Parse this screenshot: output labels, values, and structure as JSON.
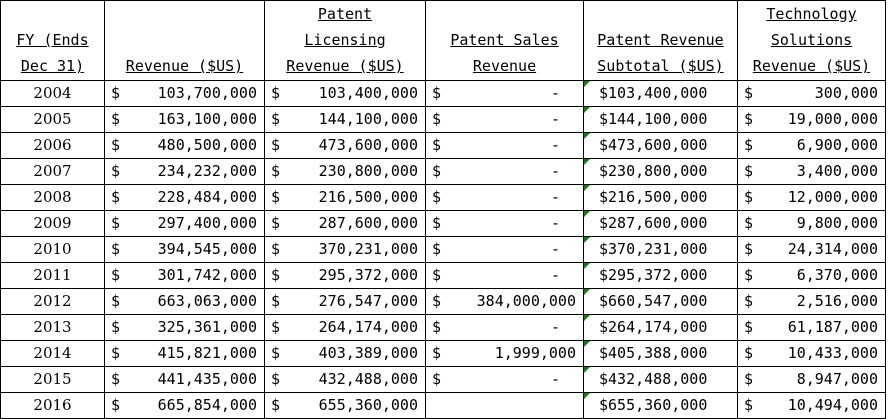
{
  "headers": [
    [
      "FY (Ends",
      "Dec 31)"
    ],
    [
      "Revenue ($US)"
    ],
    [
      "Patent",
      "Licensing",
      "Revenue ($US)"
    ],
    [
      "Patent Sales",
      "Revenue"
    ],
    [
      "Patent Revenue",
      "Subtotal ($US)"
    ],
    [
      "Technology",
      "Solutions",
      "Revenue ($US)"
    ]
  ],
  "rows": [
    {
      "year": "2004",
      "revenue": "103,700,000",
      "licensing": "103,400,000",
      "sales_sym": "$",
      "sales": "-",
      "subtotal": "$103,400,000",
      "tech": "300,000"
    },
    {
      "year": "2005",
      "revenue": "163,100,000",
      "licensing": "144,100,000",
      "sales_sym": "$",
      "sales": "-",
      "subtotal": "$144,100,000",
      "tech": "19,000,000"
    },
    {
      "year": "2006",
      "revenue": "480,500,000",
      "licensing": "473,600,000",
      "sales_sym": "$",
      "sales": "-",
      "subtotal": "$473,600,000",
      "tech": "6,900,000"
    },
    {
      "year": "2007",
      "revenue": "234,232,000",
      "licensing": "230,800,000",
      "sales_sym": "$",
      "sales": "-",
      "subtotal": "$230,800,000",
      "tech": "3,400,000"
    },
    {
      "year": "2008",
      "revenue": "228,484,000",
      "licensing": "216,500,000",
      "sales_sym": "$",
      "sales": "-",
      "subtotal": "$216,500,000",
      "tech": "12,000,000"
    },
    {
      "year": "2009",
      "revenue": "297,400,000",
      "licensing": "287,600,000",
      "sales_sym": "$",
      "sales": "-",
      "subtotal": "$287,600,000",
      "tech": "9,800,000"
    },
    {
      "year": "2010",
      "revenue": "394,545,000",
      "licensing": "370,231,000",
      "sales_sym": "$",
      "sales": "-",
      "subtotal": "$370,231,000",
      "tech": "24,314,000"
    },
    {
      "year": "2011",
      "revenue": "301,742,000",
      "licensing": "295,372,000",
      "sales_sym": "$",
      "sales": "-",
      "subtotal": "$295,372,000",
      "tech": "6,370,000"
    },
    {
      "year": "2012",
      "revenue": "663,063,000",
      "licensing": "276,547,000",
      "sales_sym": "$",
      "sales": "384,000,000",
      "subtotal": "$660,547,000",
      "tech": "2,516,000"
    },
    {
      "year": "2013",
      "revenue": "325,361,000",
      "licensing": "264,174,000",
      "sales_sym": "$",
      "sales": "-",
      "subtotal": "$264,174,000",
      "tech": "61,187,000"
    },
    {
      "year": "2014",
      "revenue": "415,821,000",
      "licensing": "403,389,000",
      "sales_sym": "$",
      "sales": "1,999,000",
      "subtotal": "$405,388,000",
      "tech": "10,433,000"
    },
    {
      "year": "2015",
      "revenue": "441,435,000",
      "licensing": "432,488,000",
      "sales_sym": "$",
      "sales": "-",
      "subtotal": "$432,488,000",
      "tech": "8,947,000"
    },
    {
      "year": "2016",
      "revenue": "665,854,000",
      "licensing": "655,360,000",
      "sales_sym": "",
      "sales": "",
      "subtotal": "$655,360,000",
      "tech": "10,494,000"
    }
  ],
  "currency_symbol": "$",
  "colors": {
    "cell_flag": "#1a7a1a"
  }
}
